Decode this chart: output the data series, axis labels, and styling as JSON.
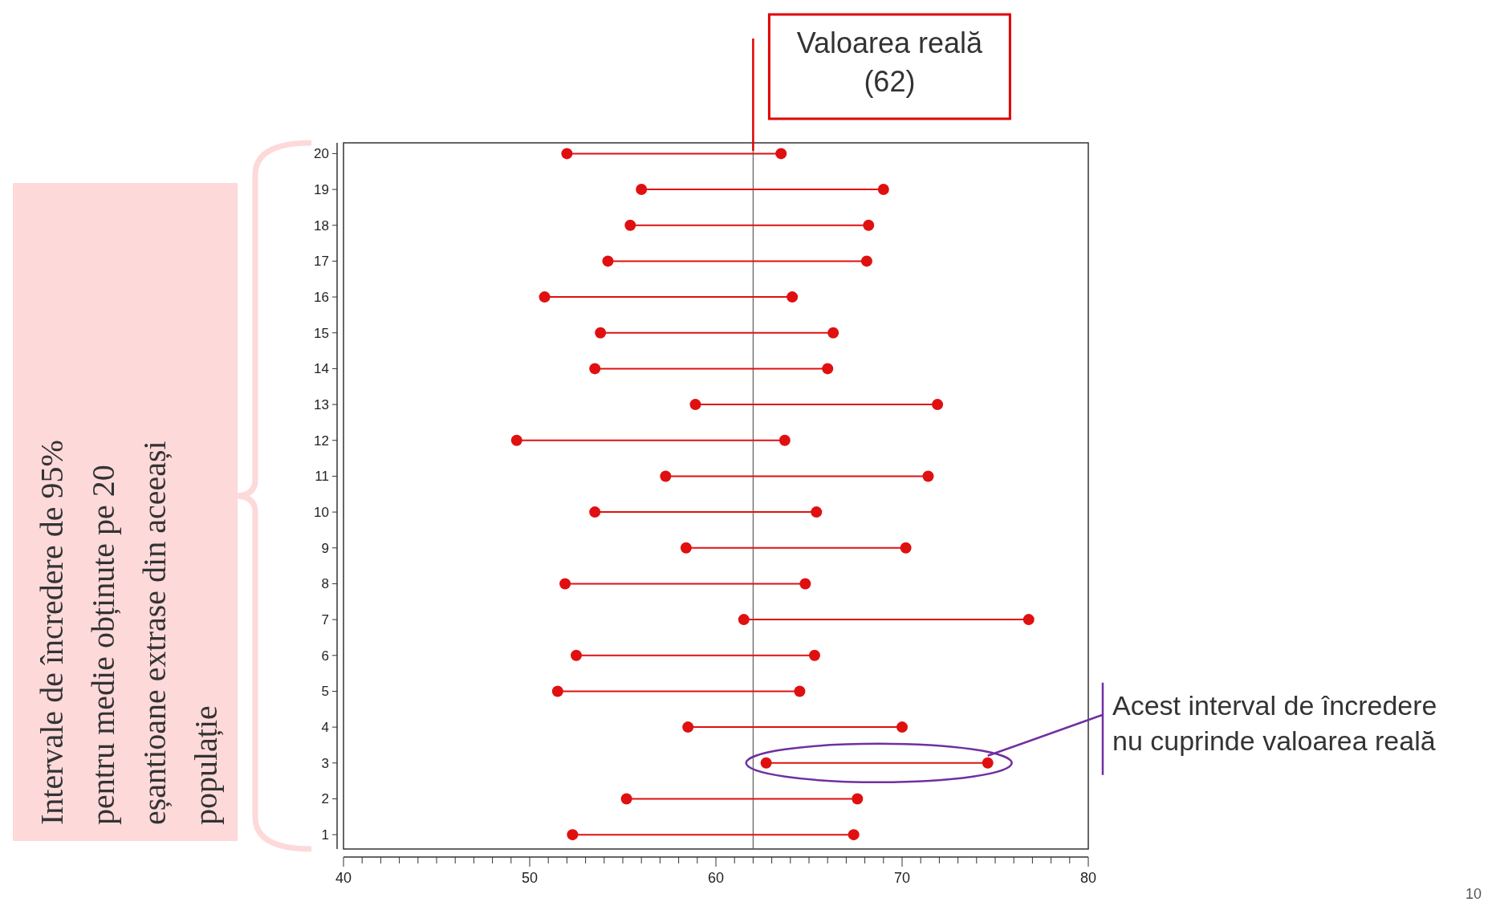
{
  "chart_data": {
    "type": "line",
    "marker": "circle",
    "line_style": "solid",
    "xlim": [
      40,
      80
    ],
    "ylim": [
      0.6,
      20.3
    ],
    "yticks": [
      1,
      2,
      3,
      4,
      5,
      6,
      7,
      8,
      9,
      10,
      11,
      12,
      13,
      14,
      15,
      16,
      17,
      18,
      19,
      20
    ],
    "xticks": [
      40,
      {
        "value": 41,
        "label": null
      },
      {
        "value": 42,
        "label": null
      },
      {
        "value": 43,
        "label": null
      },
      {
        "value": 44,
        "label": null
      },
      {
        "value": 45,
        "label": null
      },
      {
        "value": 46,
        "label": null
      },
      {
        "value": 47,
        "label": null
      },
      {
        "value": 48,
        "label": null
      },
      {
        "value": 49,
        "label": null
      },
      50,
      {
        "value": 51,
        "label": null
      },
      {
        "value": 52,
        "label": null
      },
      {
        "value": 53,
        "label": null
      },
      {
        "value": 54,
        "label": null
      },
      {
        "value": 55,
        "label": null
      },
      {
        "value": 56,
        "label": null
      },
      {
        "value": 57,
        "label": null
      },
      {
        "value": 58,
        "label": null
      },
      {
        "value": 59,
        "label": null
      },
      60,
      {
        "value": 61,
        "label": null
      },
      {
        "value": 62,
        "label": null
      },
      {
        "value": 63,
        "label": null
      },
      {
        "value": 64,
        "label": null
      },
      {
        "value": 65,
        "label": null
      },
      {
        "value": 66,
        "label": null
      },
      {
        "value": 67,
        "label": null
      },
      {
        "value": 68,
        "label": null
      },
      {
        "value": 69,
        "label": null
      },
      70,
      {
        "value": 71,
        "label": null
      },
      {
        "value": 72,
        "label": null
      },
      {
        "value": 73,
        "label": null
      },
      {
        "value": 74,
        "label": null
      },
      {
        "value": 75,
        "label": null
      },
      {
        "value": 76,
        "label": null
      },
      {
        "value": 77,
        "label": null
      },
      {
        "value": 78,
        "label": null
      },
      {
        "value": 79,
        "label": null
      },
      80
    ],
    "series": [
      {
        "color": "#e01010",
        "x": [
          52.0,
          63.5
        ],
        "values": [
          20,
          20
        ]
      },
      {
        "color": "#e01010",
        "x": [
          56.0,
          69.0
        ],
        "values": [
          19,
          19
        ]
      },
      {
        "color": "#e01010",
        "x": [
          55.4,
          68.2
        ],
        "values": [
          18,
          18
        ]
      },
      {
        "color": "#e01010",
        "x": [
          54.2,
          68.1
        ],
        "values": [
          17,
          17
        ]
      },
      {
        "color": "#e01010",
        "x": [
          50.8,
          64.1
        ],
        "values": [
          16,
          16
        ]
      },
      {
        "color": "#e01010",
        "x": [
          53.8,
          66.3
        ],
        "values": [
          15,
          15
        ]
      },
      {
        "color": "#e01010",
        "x": [
          53.5,
          66.0
        ],
        "values": [
          14,
          14
        ]
      },
      {
        "color": "#e01010",
        "x": [
          58.9,
          71.9
        ],
        "values": [
          13,
          13
        ]
      },
      {
        "color": "#e01010",
        "x": [
          49.3,
          63.7
        ],
        "values": [
          12,
          12
        ]
      },
      {
        "color": "#e01010",
        "x": [
          57.3,
          71.4
        ],
        "values": [
          11,
          11
        ]
      },
      {
        "color": "#e01010",
        "x": [
          53.5,
          65.4
        ],
        "values": [
          10,
          10
        ]
      },
      {
        "color": "#e01010",
        "x": [
          58.4,
          70.2
        ],
        "values": [
          9,
          9
        ]
      },
      {
        "color": "#e01010",
        "x": [
          51.9,
          64.8
        ],
        "values": [
          8,
          8
        ]
      },
      {
        "color": "#e01010",
        "x": [
          61.5,
          76.8
        ],
        "values": [
          7,
          7
        ]
      },
      {
        "color": "#e01010",
        "x": [
          52.5,
          65.3
        ],
        "values": [
          6,
          6
        ]
      },
      {
        "color": "#e01010",
        "x": [
          51.5,
          64.5
        ],
        "values": [
          5,
          5
        ]
      },
      {
        "color": "#e01010",
        "x": [
          58.5,
          70.0
        ],
        "values": [
          4,
          4
        ]
      },
      {
        "color": "#e01010",
        "x": [
          62.7,
          74.6
        ],
        "values": [
          3,
          3
        ]
      },
      {
        "color": "#e01010",
        "x": [
          55.2,
          67.6
        ],
        "values": [
          2,
          2
        ]
      },
      {
        "color": "#e01010",
        "x": [
          52.3,
          67.4
        ],
        "values": [
          1,
          1
        ]
      }
    ],
    "grid": false,
    "ref_lines": [
      {
        "axis": "x",
        "value": 62,
        "label": "Valoarea reală (62)",
        "color": "#606060"
      }
    ],
    "annotations": [
      "Intervale de încredere de 95% pentru medie obținute pe 20 eșantioane extrase din aceeași populație",
      {
        "text": "Acest interval de încredere nu cuprinde valoarea reală",
        "x": 74.6,
        "y": 3
      },
      "10"
    ]
  }
}
